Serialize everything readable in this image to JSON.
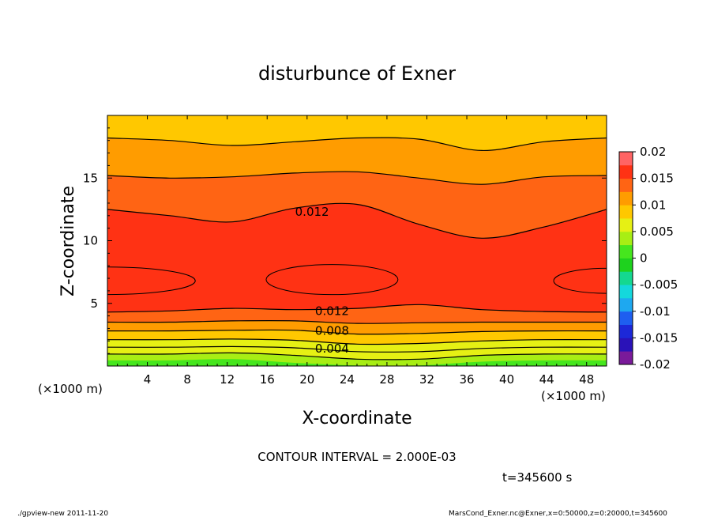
{
  "chart_data": {
    "type": "contour",
    "title": "disturbunce of Exner",
    "xlabel": "X-coordinate",
    "ylabel": "Z-coordinate",
    "x_unit_left": "(×1000 m)",
    "x_unit_right": "(×1000 m)",
    "x_ticks": [
      "4",
      "8",
      "12",
      "16",
      "20",
      "24",
      "28",
      "32",
      "36",
      "40",
      "44",
      "48"
    ],
    "x_tick_values": [
      4,
      8,
      12,
      16,
      20,
      24,
      28,
      32,
      36,
      40,
      44,
      48
    ],
    "y_ticks": [
      "5",
      "10",
      "15"
    ],
    "y_tick_values": [
      5,
      10,
      15
    ],
    "xlim": [
      0,
      50
    ],
    "ylim": [
      0,
      20
    ],
    "colorbar": {
      "labels": [
        "0.02",
        "0.015",
        "0.01",
        "0.005",
        "0",
        "-0.005",
        "-0.01",
        "-0.015",
        "-0.02"
      ],
      "label_values": [
        0.02,
        0.015,
        0.01,
        0.005,
        0,
        -0.005,
        -0.01,
        -0.015,
        -0.02
      ],
      "levels": [
        -0.02,
        -0.0175,
        -0.015,
        -0.0125,
        -0.01,
        -0.0075,
        -0.005,
        -0.0025,
        0,
        0.0025,
        0.005,
        0.0075,
        0.01,
        0.0125,
        0.015,
        0.0175,
        0.02
      ],
      "colors": [
        "#7a1a9a",
        "#2a12b8",
        "#1c28d8",
        "#1e5ef0",
        "#1ea8f0",
        "#14d8dc",
        "#14d890",
        "#1ed21e",
        "#46e61e",
        "#a8ee14",
        "#e6f014",
        "#ffc800",
        "#ff9c00",
        "#ff6414",
        "#ff3214",
        "#ff6464"
      ]
    },
    "contour_interval": 0.002,
    "contour_labels": [
      {
        "text": "0.012",
        "x": 20.5,
        "z": 12.3
      },
      {
        "text": "0.012",
        "x": 22.5,
        "z": 4.4
      },
      {
        "text": "0.008",
        "x": 22.5,
        "z": 2.8
      },
      {
        "text": "0.004",
        "x": 22.5,
        "z": 1.4
      }
    ],
    "bands": [
      {
        "value": 0.0,
        "top": [
          0.45,
          0.45,
          0.55,
          0.25,
          0.05,
          0.05,
          0.35,
          0.45,
          0.45
        ]
      },
      {
        "value": 0.002,
        "top": [
          0.95,
          0.95,
          1.05,
          0.85,
          0.55,
          0.55,
          0.85,
          0.95,
          0.95
        ]
      },
      {
        "value": 0.004,
        "top": [
          1.5,
          1.5,
          1.55,
          1.45,
          1.15,
          1.15,
          1.4,
          1.5,
          1.5
        ]
      },
      {
        "value": 0.006,
        "top": [
          2.1,
          2.1,
          2.15,
          2.05,
          1.75,
          1.8,
          2.0,
          2.1,
          2.1
        ]
      },
      {
        "value": 0.008,
        "top": [
          2.8,
          2.8,
          2.85,
          2.85,
          2.55,
          2.6,
          2.75,
          2.8,
          2.8
        ]
      },
      {
        "value": 0.01,
        "top": [
          3.5,
          3.5,
          3.6,
          3.6,
          3.4,
          3.45,
          3.5,
          3.5,
          3.5
        ]
      },
      {
        "value": 0.012,
        "top": [
          4.3,
          4.4,
          4.6,
          4.5,
          4.6,
          4.9,
          4.5,
          4.35,
          4.3
        ]
      },
      {
        "value": 0.014,
        "top": [
          12.5,
          12.0,
          11.5,
          12.6,
          12.9,
          11.3,
          10.2,
          11.1,
          12.5
        ]
      },
      {
        "value": 0.012,
        "top": [
          15.2,
          15.0,
          15.1,
          15.4,
          15.5,
          15.0,
          14.5,
          15.1,
          15.2
        ]
      },
      {
        "value": 0.01,
        "top": [
          18.2,
          18.0,
          17.6,
          17.9,
          18.2,
          18.1,
          17.2,
          17.9,
          18.2
        ]
      },
      {
        "value": 0.008,
        "top": [
          20,
          20,
          20,
          20,
          20,
          20,
          20,
          20,
          20
        ]
      }
    ],
    "maxima": [
      {
        "value": 0.016,
        "x_center": 22.5,
        "z_center": 6.9,
        "x_half_width": 6.6,
        "z_half_width": 1.2
      },
      {
        "value": 0.016,
        "x_center": 0,
        "z_center": 6.8,
        "x_half_width": 8.8,
        "z_half_width": 1.1
      },
      {
        "value": 0.016,
        "x_center": 50,
        "z_center": 6.8,
        "x_half_width": 5.3,
        "z_half_width": 1.0
      }
    ]
  },
  "footer": {
    "contour_interval_text": "CONTOUR INTERVAL = 2.000E-03",
    "time_text": "t=345600 s",
    "left_note": "./gpview-new   2011-11-20",
    "right_note": "MarsCond_Exner.nc@Exner,x=0:50000,z=0:20000,t=345600"
  }
}
